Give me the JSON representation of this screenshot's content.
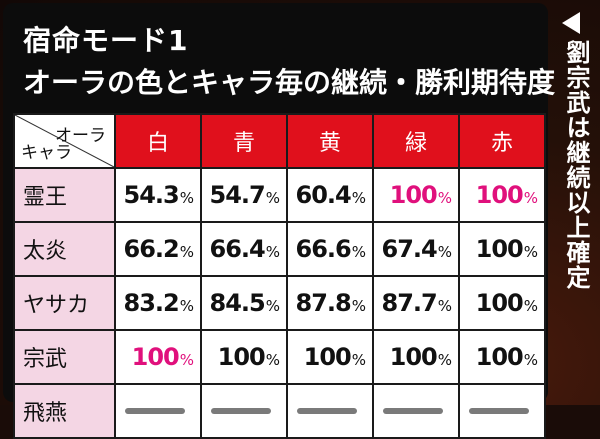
{
  "title": {
    "line1": "宿命モード1",
    "line2": "オーラの色とキャラ毎の継続・勝利期待度"
  },
  "table": {
    "corner_top": "オーラ",
    "corner_bottom": "キャラ",
    "columns": [
      "白",
      "青",
      "黄",
      "緑",
      "赤"
    ],
    "percent_sign": "%",
    "rows": [
      {
        "label": "霊王",
        "values": [
          "54.3",
          "54.7",
          "60.4",
          "100",
          "100"
        ],
        "highlight": [
          false,
          false,
          false,
          true,
          true
        ]
      },
      {
        "label": "太炎",
        "values": [
          "66.2",
          "66.4",
          "66.6",
          "67.4",
          "100"
        ],
        "highlight": [
          false,
          false,
          false,
          false,
          false
        ]
      },
      {
        "label": "ヤサカ",
        "values": [
          "83.2",
          "84.5",
          "87.8",
          "87.7",
          "100"
        ],
        "highlight": [
          false,
          false,
          false,
          false,
          false
        ]
      },
      {
        "label": "宗武",
        "values": [
          "100",
          "100",
          "100",
          "100",
          "100"
        ],
        "highlight": [
          true,
          false,
          false,
          false,
          false
        ]
      },
      {
        "label": "飛燕",
        "values": [
          "",
          "",
          "",
          "",
          ""
        ],
        "highlight": [
          false,
          false,
          false,
          false,
          false
        ]
      }
    ]
  },
  "side_note": "劉宗武は継続以上確定",
  "colors": {
    "header_red": "#e0101c",
    "row_header_pink": "#f4d6e4",
    "highlight_magenta": "#e0107c",
    "panel_black": "#0c0c0c"
  },
  "icons": {
    "side_arrow": "triangle-left-icon",
    "no_data": "dash-icon"
  }
}
